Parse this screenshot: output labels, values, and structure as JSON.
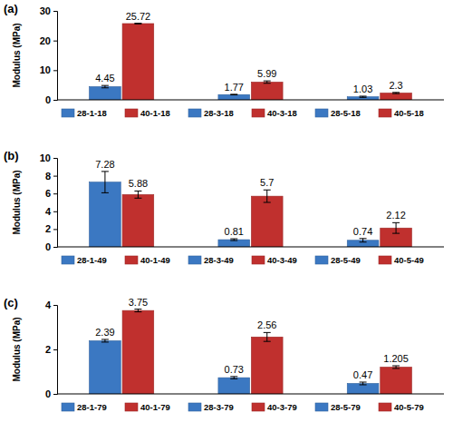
{
  "chart_data": [
    {
      "type": "bar",
      "title": "(a)",
      "ylabel": "Modulus (MPa)",
      "categories": [
        null,
        null,
        null
      ],
      "ylim": [
        0,
        30
      ],
      "yticks": [
        0,
        10,
        20,
        30
      ],
      "legend": "bottom",
      "data_labels": true,
      "series": [
        {
          "name": "28-1-18",
          "color": "#3b78c2",
          "values": [
            4.45,
            null,
            null
          ],
          "errors": [
            0.4,
            null,
            null
          ]
        },
        {
          "name": "40-1-18",
          "color": "#c0302e",
          "values": [
            25.72,
            null,
            null
          ],
          "errors": [
            0.1,
            null,
            null
          ]
        },
        {
          "name": "28-3-18",
          "color": "#3b78c2",
          "values": [
            null,
            1.77,
            null
          ],
          "errors": [
            null,
            0.1,
            null
          ]
        },
        {
          "name": "40-3-18",
          "color": "#c0302e",
          "values": [
            null,
            5.99,
            null
          ],
          "errors": [
            null,
            0.4,
            null
          ]
        },
        {
          "name": "28-5-18",
          "color": "#3b78c2",
          "values": [
            null,
            null,
            1.03
          ],
          "errors": [
            null,
            null,
            0.2
          ]
        },
        {
          "name": "40-5-18",
          "color": "#c0302e",
          "values": [
            null,
            null,
            2.3
          ],
          "errors": [
            null,
            null,
            0.2
          ]
        }
      ]
    },
    {
      "type": "bar",
      "title": "(b)",
      "ylabel": "Modulus (MPa)",
      "categories": [
        null,
        null,
        null
      ],
      "ylim": [
        0,
        10
      ],
      "yticks": [
        0,
        2,
        4,
        6,
        8,
        10
      ],
      "legend": "bottom",
      "data_labels": true,
      "series": [
        {
          "name": "28-1-49",
          "color": "#3b78c2",
          "values": [
            7.28,
            null,
            null
          ],
          "errors": [
            1.2,
            null,
            null
          ]
        },
        {
          "name": "40-1-49",
          "color": "#c0302e",
          "values": [
            5.88,
            null,
            null
          ],
          "errors": [
            0.4,
            null,
            null
          ]
        },
        {
          "name": "28-3-49",
          "color": "#3b78c2",
          "values": [
            null,
            0.81,
            null
          ],
          "errors": [
            null,
            0.1,
            null
          ]
        },
        {
          "name": "40-3-49",
          "color": "#c0302e",
          "values": [
            null,
            5.7,
            null
          ],
          "errors": [
            null,
            0.7,
            null
          ]
        },
        {
          "name": "28-5-49",
          "color": "#3b78c2",
          "values": [
            null,
            null,
            0.74
          ],
          "errors": [
            null,
            null,
            0.2
          ]
        },
        {
          "name": "40-5-49",
          "color": "#c0302e",
          "values": [
            null,
            null,
            2.12
          ],
          "errors": [
            null,
            null,
            0.6
          ]
        }
      ]
    },
    {
      "type": "bar",
      "title": "(c)",
      "ylabel": "Modulus (MPa)",
      "categories": [
        null,
        null,
        null
      ],
      "ylim": [
        0,
        4
      ],
      "yticks": [
        0,
        2,
        4
      ],
      "legend": "bottom",
      "data_labels": true,
      "series": [
        {
          "name": "28-1-79",
          "color": "#3b78c2",
          "values": [
            2.39,
            null,
            null
          ],
          "errors": [
            0.06,
            null,
            null
          ]
        },
        {
          "name": "40-1-79",
          "color": "#c0302e",
          "values": [
            3.75,
            null,
            null
          ],
          "errors": [
            0.06,
            null,
            null
          ]
        },
        {
          "name": "28-3-79",
          "color": "#3b78c2",
          "values": [
            null,
            0.73,
            null
          ],
          "errors": [
            null,
            0.05,
            null
          ]
        },
        {
          "name": "40-3-79",
          "color": "#c0302e",
          "values": [
            null,
            2.56,
            null
          ],
          "errors": [
            null,
            0.2,
            null
          ]
        },
        {
          "name": "28-5-79",
          "color": "#3b78c2",
          "values": [
            null,
            null,
            0.47
          ],
          "errors": [
            null,
            null,
            0.06
          ]
        },
        {
          "name": "40-5-79",
          "color": "#c0302e",
          "values": [
            null,
            null,
            1.205
          ],
          "errors": [
            null,
            null,
            0.06
          ]
        }
      ]
    }
  ]
}
